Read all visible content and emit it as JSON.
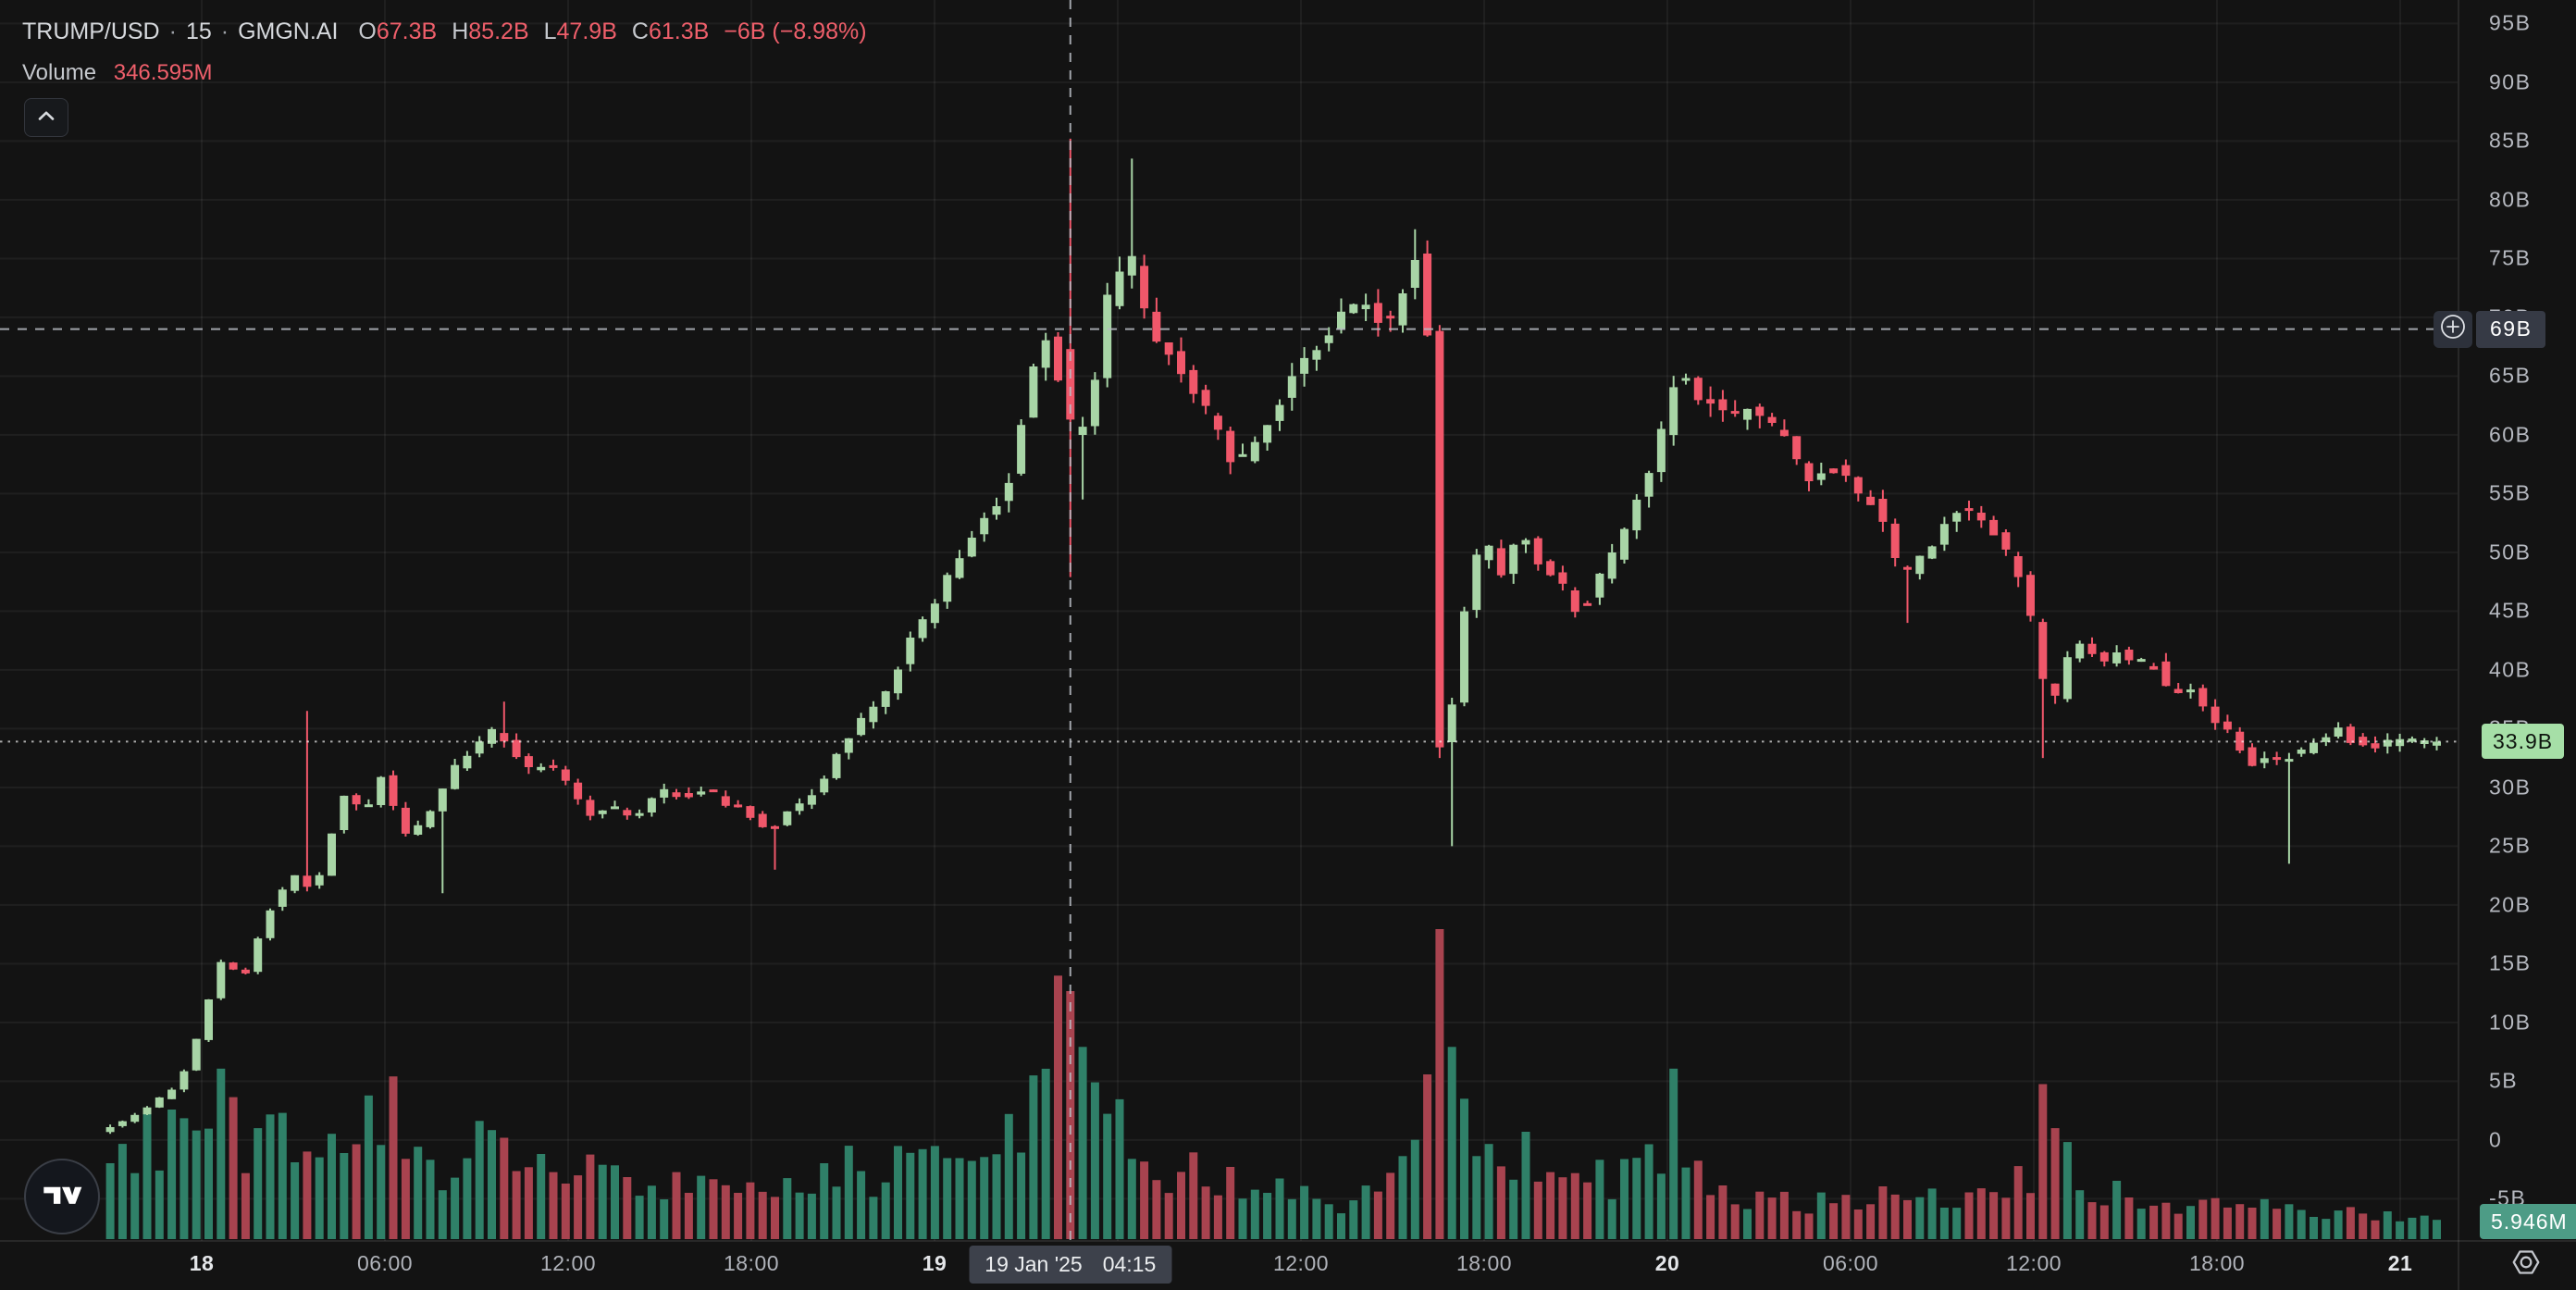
{
  "header": {
    "symbol": "TRUMP/USD",
    "separator": "·",
    "interval": "15",
    "exchange": "GMGN.AI",
    "ohlc": {
      "o_label": "O",
      "o_value": "67.3B",
      "h_label": "H",
      "h_value": "85.2B",
      "l_label": "L",
      "l_value": "47.9B",
      "c_label": "C",
      "c_value": "61.3B",
      "change": "−6B (−8.98%)"
    },
    "volume_label": "Volume",
    "volume_value": "346.595M"
  },
  "crosshair": {
    "price_label": "69B",
    "date": "19 Jan '25",
    "time": "04:15"
  },
  "last_price_label": "33.9B",
  "last_volume_label": "5.946M",
  "colors": {
    "background": "#131313",
    "candle_up": "#a8d5a6",
    "candle_down": "#f0576a",
    "volume_up": "#2f8068",
    "volume_down": "#a8434f",
    "grid": "rgba(255,255,255,0.055)",
    "axis_border": "rgba(255,255,255,0.09)",
    "crosshair_line": "#b9bdc5",
    "last_price_line": "rgba(255,255,255,0.65)",
    "text_primary": "#d6d9dd",
    "text_secondary": "#b6b9c0",
    "ohlc_value_red": "#ef5f6b",
    "crosshair_label_bg": "#363a45",
    "last_price_bg": "#a6dfa7",
    "last_volume_bg": "#4d9c86"
  },
  "chart_data": {
    "type": "candlestick_with_volume",
    "symbol": "TRUMP/USD",
    "interval_minutes": 15,
    "data_source": "GMGN.AI",
    "price_unit": "B = billions USD",
    "t_hours_reference": "hours after 18 Jan '25 00:00",
    "visible_t_range": [
      -3.2,
      73.4
    ],
    "ylim": [
      -8.6,
      97
    ],
    "grid": true,
    "y_ticks": [
      {
        "label": "95B",
        "value": 95
      },
      {
        "label": "90B",
        "value": 90
      },
      {
        "label": "85B",
        "value": 85
      },
      {
        "label": "80B",
        "value": 80
      },
      {
        "label": "75B",
        "value": 75
      },
      {
        "label": "70B",
        "value": 70
      },
      {
        "label": "65B",
        "value": 65
      },
      {
        "label": "60B",
        "value": 60
      },
      {
        "label": "55B",
        "value": 55
      },
      {
        "label": "50B",
        "value": 50
      },
      {
        "label": "45B",
        "value": 45
      },
      {
        "label": "40B",
        "value": 40
      },
      {
        "label": "35B",
        "value": 35
      },
      {
        "label": "30B",
        "value": 30
      },
      {
        "label": "25B",
        "value": 25
      },
      {
        "label": "20B",
        "value": 20
      },
      {
        "label": "15B",
        "value": 15
      },
      {
        "label": "10B",
        "value": 10
      },
      {
        "label": "5B",
        "value": 5
      },
      {
        "label": "0",
        "value": 0
      },
      {
        "label": "-5B",
        "value": -5
      }
    ],
    "x_ticks": [
      {
        "label": "18",
        "t": 0,
        "bold": true
      },
      {
        "label": "06:00",
        "t": 6
      },
      {
        "label": "12:00",
        "t": 12
      },
      {
        "label": "18:00",
        "t": 18
      },
      {
        "label": "19",
        "t": 24,
        "bold": true
      },
      {
        "label": "12:00",
        "t": 36
      },
      {
        "label": "18:00",
        "t": 42
      },
      {
        "label": "20",
        "t": 48,
        "bold": true
      },
      {
        "label": "06:00",
        "t": 54
      },
      {
        "label": "12:00",
        "t": 60
      },
      {
        "label": "18:00",
        "t": 66
      },
      {
        "label": "21",
        "t": 72,
        "bold": true
      }
    ],
    "hidden_grid_t": [
      30
    ],
    "hovered_candle": {
      "t": 28.25,
      "time_label": "19 Jan '25 04:15",
      "open_B": 67.3,
      "high_B": 85.2,
      "low_B": 47.9,
      "close_B": 61.3,
      "change_B": -6,
      "change_pct": -8.98,
      "volume": "346.595M"
    },
    "crosshair_price_B": 69,
    "last_candle": {
      "close_B": 33.9,
      "volume": "5.946M"
    },
    "price_path_anchors": [
      [
        -3.2,
        0.8
      ],
      [
        -2.4,
        1.6
      ],
      [
        -1.6,
        2.8
      ],
      [
        -0.8,
        4.2
      ],
      [
        -0.2,
        6.5
      ],
      [
        0.3,
        11.0
      ],
      [
        0.8,
        15.2
      ],
      [
        1.6,
        14.0
      ],
      [
        2.4,
        19.5
      ],
      [
        3.2,
        22.5
      ],
      [
        3.9,
        21.0
      ],
      [
        4.3,
        25.0
      ],
      [
        4.9,
        29.5
      ],
      [
        5.5,
        27.5
      ],
      [
        6.1,
        31.0
      ],
      [
        6.8,
        25.8
      ],
      [
        7.5,
        27.0
      ],
      [
        8.3,
        31.2
      ],
      [
        9.1,
        33.2
      ],
      [
        9.8,
        35.2
      ],
      [
        10.4,
        33.0
      ],
      [
        10.9,
        31.5
      ],
      [
        11.5,
        32.0
      ],
      [
        12.3,
        29.8
      ],
      [
        12.9,
        27.8
      ],
      [
        13.6,
        28.4
      ],
      [
        14.4,
        27.2
      ],
      [
        15.2,
        30.0
      ],
      [
        16.0,
        29.0
      ],
      [
        16.8,
        29.8
      ],
      [
        17.4,
        28.6
      ],
      [
        18.2,
        27.6
      ],
      [
        18.8,
        26.2
      ],
      [
        19.6,
        28.4
      ],
      [
        20.3,
        29.8
      ],
      [
        20.9,
        32.3
      ],
      [
        21.6,
        35.4
      ],
      [
        22.2,
        36.8
      ],
      [
        22.8,
        39.0
      ],
      [
        23.4,
        42.5
      ],
      [
        24.1,
        45.3
      ],
      [
        24.8,
        48.8
      ],
      [
        25.4,
        51.0
      ],
      [
        26.1,
        53.8
      ],
      [
        26.7,
        56.5
      ],
      [
        27.2,
        63.5
      ],
      [
        27.8,
        68.5
      ],
      [
        28.05,
        67.3
      ],
      [
        28.45,
        61.3
      ],
      [
        28.8,
        58.5
      ],
      [
        29.1,
        61.0
      ],
      [
        29.4,
        63.5
      ],
      [
        29.8,
        71.0
      ],
      [
        30.2,
        74.0
      ],
      [
        30.6,
        75.5
      ],
      [
        31.0,
        71.5
      ],
      [
        31.5,
        68.0
      ],
      [
        32.0,
        66.0
      ],
      [
        32.5,
        64.5
      ],
      [
        33.0,
        62.5
      ],
      [
        33.5,
        60.5
      ],
      [
        34.0,
        57.5
      ],
      [
        34.5,
        58.5
      ],
      [
        35.0,
        61.0
      ],
      [
        35.6,
        63.5
      ],
      [
        36.1,
        65.5
      ],
      [
        36.6,
        67.0
      ],
      [
        37.1,
        69.0
      ],
      [
        37.6,
        70.5
      ],
      [
        38.1,
        71.5
      ],
      [
        38.6,
        70.0
      ],
      [
        39.0,
        68.5
      ],
      [
        39.4,
        71.0
      ],
      [
        39.8,
        74.5
      ],
      [
        40.1,
        75.8
      ],
      [
        40.35,
        68.0
      ],
      [
        40.55,
        42.0
      ],
      [
        40.8,
        31.5
      ],
      [
        41.1,
        36.0
      ],
      [
        41.4,
        43.0
      ],
      [
        41.8,
        48.8
      ],
      [
        42.2,
        51.0
      ],
      [
        42.8,
        48.0
      ],
      [
        43.3,
        51.5
      ],
      [
        43.7,
        50.8
      ],
      [
        44.1,
        48.8
      ],
      [
        44.7,
        47.3
      ],
      [
        45.1,
        45.2
      ],
      [
        45.6,
        46.0
      ],
      [
        46.2,
        48.8
      ],
      [
        46.7,
        51.0
      ],
      [
        47.1,
        54.0
      ],
      [
        47.6,
        57.0
      ],
      [
        48.0,
        60.5
      ],
      [
        48.3,
        64.0
      ],
      [
        48.7,
        65.3
      ],
      [
        49.3,
        63.0
      ],
      [
        49.8,
        62.2
      ],
      [
        50.3,
        61.0
      ],
      [
        50.9,
        63.0
      ],
      [
        51.4,
        61.0
      ],
      [
        52.0,
        59.5
      ],
      [
        52.5,
        57.3
      ],
      [
        53.1,
        56.0
      ],
      [
        53.4,
        57.4
      ],
      [
        54.1,
        56.0
      ],
      [
        54.7,
        54.5
      ],
      [
        55.2,
        53.0
      ],
      [
        55.8,
        48.0
      ],
      [
        56.3,
        48.8
      ],
      [
        56.9,
        51.0
      ],
      [
        57.4,
        53.2
      ],
      [
        58.0,
        53.8
      ],
      [
        58.5,
        52.4
      ],
      [
        59.0,
        51.0
      ],
      [
        59.4,
        49.5
      ],
      [
        60.0,
        46.5
      ],
      [
        60.3,
        39.8
      ],
      [
        60.9,
        37.6
      ],
      [
        61.3,
        41.0
      ],
      [
        61.7,
        42.5
      ],
      [
        62.1,
        41.3
      ],
      [
        62.5,
        40.3
      ],
      [
        62.9,
        41.8
      ],
      [
        63.5,
        40.3
      ],
      [
        64.0,
        41.0
      ],
      [
        64.4,
        39.0
      ],
      [
        64.8,
        37.6
      ],
      [
        65.4,
        38.2
      ],
      [
        65.9,
        36.1
      ],
      [
        66.4,
        35.4
      ],
      [
        66.9,
        33.3
      ],
      [
        67.3,
        32.0
      ],
      [
        67.9,
        32.6
      ],
      [
        68.4,
        32.3
      ],
      [
        69.0,
        33.3
      ],
      [
        69.5,
        34.0
      ],
      [
        70.1,
        35.2
      ],
      [
        70.6,
        34.0
      ],
      [
        71.2,
        33.3
      ],
      [
        71.7,
        33.7
      ],
      [
        72.3,
        34.3
      ],
      [
        72.8,
        33.7
      ],
      [
        73.4,
        33.9
      ]
    ],
    "wick_events": [
      {
        "t": 0.7,
        "vol": 0.55
      },
      {
        "t": 3.4,
        "high": 36.5
      },
      {
        "t": 7.9,
        "low": 21.0
      },
      {
        "t": 9.8,
        "high": 37.3
      },
      {
        "t": 18.9,
        "low": 23.0
      },
      {
        "t": 27.85,
        "vol": 0.85
      },
      {
        "t": 28.25,
        "open": 67.3,
        "high": 85.2,
        "low": 47.9,
        "close": 61.3,
        "vol": 0.8
      },
      {
        "t": 28.65,
        "vol": 0.62
      },
      {
        "t": 28.9,
        "low": 54.5
      },
      {
        "t": 30.6,
        "high": 83.5
      },
      {
        "t": 39.9,
        "high": 77.5
      },
      {
        "t": 40.55,
        "low": 37.5,
        "vol": 1.0
      },
      {
        "t": 40.85,
        "low": 25.0,
        "vol": 0.62
      },
      {
        "t": 48.3,
        "vol": 0.55
      },
      {
        "t": 55.8,
        "low": 44.0
      },
      {
        "t": 60.3,
        "low": 32.5,
        "vol": 0.5
      },
      {
        "t": 68.3,
        "low": 23.5
      }
    ],
    "volume_envelope_rel": [
      [
        -3.2,
        0.28
      ],
      [
        -2,
        0.35
      ],
      [
        -1,
        0.38
      ],
      [
        0,
        0.5
      ],
      [
        1,
        0.42
      ],
      [
        2,
        0.38
      ],
      [
        3,
        0.35
      ],
      [
        4,
        0.3
      ],
      [
        5,
        0.32
      ],
      [
        6,
        0.5
      ],
      [
        7,
        0.35
      ],
      [
        8,
        0.3
      ],
      [
        9,
        0.38
      ],
      [
        10,
        0.32
      ],
      [
        11,
        0.25
      ],
      [
        12,
        0.3
      ],
      [
        13,
        0.22
      ],
      [
        14,
        0.2
      ],
      [
        15,
        0.22
      ],
      [
        16,
        0.18
      ],
      [
        17,
        0.2
      ],
      [
        18,
        0.18
      ],
      [
        19,
        0.2
      ],
      [
        20,
        0.22
      ],
      [
        21,
        0.28
      ],
      [
        22,
        0.25
      ],
      [
        23,
        0.3
      ],
      [
        24,
        0.32
      ],
      [
        25,
        0.3
      ],
      [
        26,
        0.42
      ],
      [
        27,
        0.55
      ],
      [
        27.6,
        0.8
      ],
      [
        28.3,
        0.72
      ],
      [
        29,
        0.55
      ],
      [
        29.6,
        0.45
      ],
      [
        30.5,
        0.38
      ],
      [
        31.5,
        0.3
      ],
      [
        32.5,
        0.28
      ],
      [
        33.5,
        0.22
      ],
      [
        34.5,
        0.2
      ],
      [
        35.5,
        0.18
      ],
      [
        36.5,
        0.18
      ],
      [
        37.5,
        0.16
      ],
      [
        38.5,
        0.18
      ],
      [
        39.5,
        0.25
      ],
      [
        40.2,
        0.55
      ],
      [
        40.55,
        1.0
      ],
      [
        41,
        0.6
      ],
      [
        41.5,
        0.5
      ],
      [
        42.5,
        0.4
      ],
      [
        43.5,
        0.3
      ],
      [
        44.5,
        0.25
      ],
      [
        45.5,
        0.22
      ],
      [
        46.5,
        0.25
      ],
      [
        47.5,
        0.3
      ],
      [
        48.3,
        0.5
      ],
      [
        49,
        0.3
      ],
      [
        50,
        0.2
      ],
      [
        51,
        0.16
      ],
      [
        52,
        0.14
      ],
      [
        53,
        0.14
      ],
      [
        54,
        0.15
      ],
      [
        55,
        0.18
      ],
      [
        56,
        0.2
      ],
      [
        57,
        0.15
      ],
      [
        58,
        0.14
      ],
      [
        59,
        0.15
      ],
      [
        60,
        0.28
      ],
      [
        60.4,
        0.5
      ],
      [
        61,
        0.35
      ],
      [
        62,
        0.2
      ],
      [
        63,
        0.15
      ],
      [
        64,
        0.12
      ],
      [
        65,
        0.14
      ],
      [
        66,
        0.12
      ],
      [
        67,
        0.14
      ],
      [
        68,
        0.12
      ],
      [
        69,
        0.1
      ],
      [
        70,
        0.12
      ],
      [
        71,
        0.09
      ],
      [
        72,
        0.09
      ],
      [
        73,
        0.07
      ],
      [
        73.4,
        0.05
      ]
    ]
  }
}
